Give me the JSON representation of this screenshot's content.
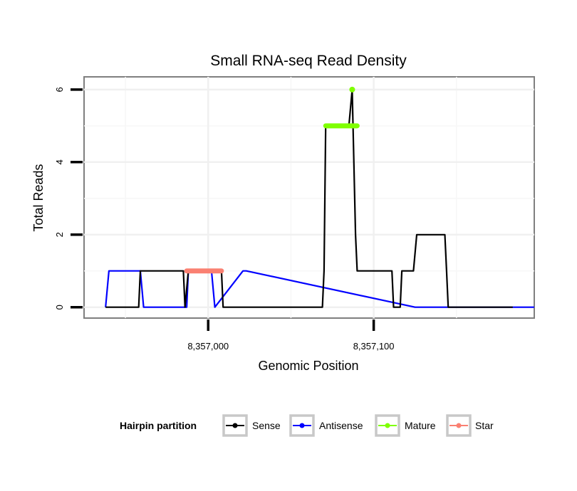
{
  "chart_data": {
    "type": "line",
    "title": "Small RNA-seq Read Density",
    "xlabel": "Genomic Position",
    "ylabel": "Total Reads",
    "xlim": [
      8356925,
      8357197
    ],
    "ylim": [
      -0.3,
      6.35
    ],
    "x_ticks": [
      {
        "value": 8357000,
        "label": "8,357,000"
      },
      {
        "value": 8357100,
        "label": "8,357,100"
      }
    ],
    "y_ticks": [
      {
        "value": 0,
        "label": "0"
      },
      {
        "value": 2,
        "label": "2"
      },
      {
        "value": 4,
        "label": "4"
      },
      {
        "value": 6,
        "label": "6"
      }
    ],
    "grid": true,
    "legend": {
      "title": "Hairpin partition",
      "position": "bottom",
      "entries": [
        {
          "name": "Sense",
          "color": "#000000"
        },
        {
          "name": "Antisense",
          "color": "#0000ff"
        },
        {
          "name": "Mature",
          "color": "#7fff00"
        },
        {
          "name": "Star",
          "color": "#fa8072"
        }
      ]
    },
    "series": [
      {
        "name": "Antisense",
        "color": "#0000ff",
        "x": [
          8356938,
          8356940,
          8356959,
          8356961,
          8356987,
          8356988,
          8357002,
          8357004,
          8357021,
          8357023,
          8357125,
          8357197
        ],
        "y": [
          0,
          1,
          1,
          0,
          0,
          1,
          1,
          0,
          1,
          1,
          0,
          0
        ]
      },
      {
        "name": "Sense",
        "color": "#000000",
        "x": [
          8356938,
          8356958,
          8356959,
          8356985,
          8356986,
          8356988,
          8357007,
          8357008,
          8357009,
          8357069,
          8357070,
          8357071,
          8357085,
          8357087,
          8357089,
          8357090,
          8357111,
          8357112,
          8357116,
          8357117,
          8357119,
          8357124,
          8357126,
          8357143,
          8357144,
          8357145,
          8357184
        ],
        "y": [
          0,
          0,
          1,
          1,
          0,
          1,
          1,
          1,
          0,
          0,
          1,
          5,
          5,
          6,
          2,
          1,
          1,
          0,
          0,
          1,
          1,
          1,
          2,
          2,
          1,
          0,
          0
        ]
      }
    ],
    "segments": [
      {
        "name": "Mature",
        "color": "#7fff00",
        "x_start": 8357071,
        "x_end": 8357090,
        "y": 5
      },
      {
        "name": "Star",
        "color": "#fa8072",
        "x_start": 8356987,
        "x_end": 8357008,
        "y": 1
      }
    ],
    "points": [
      {
        "name": "Mature",
        "color": "#7fff00",
        "x": 8357087,
        "y": 6
      }
    ]
  }
}
